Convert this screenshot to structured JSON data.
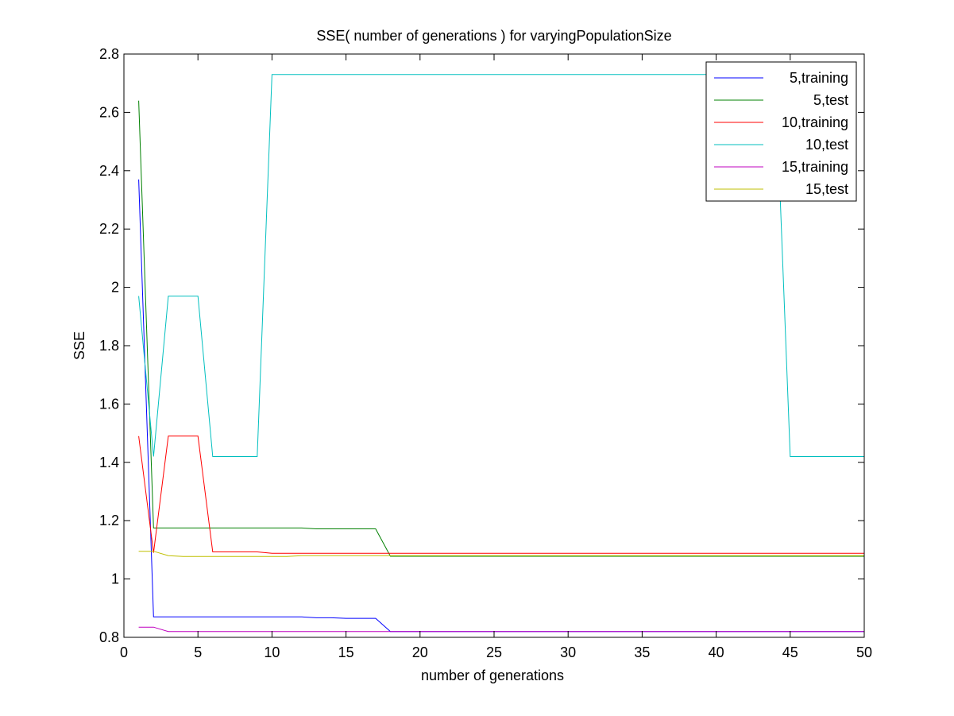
{
  "chart_data": {
    "type": "line",
    "title": "SSE( number of generations ) for varyingPopulationSize",
    "xlabel": "number of generations",
    "ylabel": "SSE",
    "xlim": [
      0,
      50
    ],
    "ylim": [
      0.8,
      2.8
    ],
    "xticks": [
      0,
      5,
      10,
      15,
      20,
      25,
      30,
      35,
      40,
      45,
      50
    ],
    "yticks": [
      0.8,
      1,
      1.2,
      1.4,
      1.6,
      1.8,
      2,
      2.2,
      2.4,
      2.6,
      2.8
    ],
    "xtick_labels": [
      "0",
      "5",
      "10",
      "15",
      "20",
      "25",
      "30",
      "35",
      "40",
      "45",
      "50"
    ],
    "ytick_labels": [
      "0.8",
      "1",
      "1.2",
      "1.4",
      "1.6",
      "1.8",
      "2",
      "2.2",
      "2.4",
      "2.6",
      "2.8"
    ],
    "grid": false,
    "legend_position": "top-right",
    "series": [
      {
        "name": "5,training",
        "color": "#0000ff",
        "x": [
          1,
          2,
          3,
          4,
          5,
          6,
          7,
          8,
          9,
          10,
          11,
          12,
          13,
          14,
          15,
          16,
          17,
          18,
          19,
          20,
          21,
          22,
          23,
          24,
          25,
          26,
          27,
          28,
          29,
          30,
          31,
          32,
          33,
          34,
          35,
          36,
          37,
          38,
          39,
          40,
          41,
          42,
          43,
          44,
          45,
          46,
          47,
          48,
          49,
          50
        ],
        "y": [
          2.37,
          0.87,
          0.87,
          0.87,
          0.87,
          0.87,
          0.87,
          0.87,
          0.87,
          0.87,
          0.87,
          0.87,
          0.867,
          0.867,
          0.865,
          0.865,
          0.865,
          0.82,
          0.82,
          0.82,
          0.82,
          0.82,
          0.82,
          0.82,
          0.82,
          0.82,
          0.82,
          0.82,
          0.82,
          0.82,
          0.82,
          0.82,
          0.82,
          0.82,
          0.82,
          0.82,
          0.82,
          0.82,
          0.82,
          0.82,
          0.82,
          0.82,
          0.82,
          0.82,
          0.82,
          0.82,
          0.82,
          0.82,
          0.82,
          0.82
        ]
      },
      {
        "name": "5,test",
        "color": "#008000",
        "x": [
          1,
          2,
          3,
          4,
          5,
          6,
          7,
          8,
          9,
          10,
          11,
          12,
          13,
          14,
          15,
          16,
          17,
          18,
          19,
          20,
          21,
          22,
          23,
          24,
          25,
          26,
          27,
          28,
          29,
          30,
          31,
          32,
          33,
          34,
          35,
          36,
          37,
          38,
          39,
          40,
          41,
          42,
          43,
          44,
          45,
          46,
          47,
          48,
          49,
          50
        ],
        "y": [
          2.64,
          1.175,
          1.175,
          1.175,
          1.175,
          1.175,
          1.175,
          1.175,
          1.175,
          1.175,
          1.175,
          1.175,
          1.172,
          1.172,
          1.172,
          1.172,
          1.172,
          1.078,
          1.078,
          1.078,
          1.078,
          1.078,
          1.078,
          1.078,
          1.078,
          1.078,
          1.078,
          1.078,
          1.078,
          1.078,
          1.078,
          1.078,
          1.078,
          1.078,
          1.078,
          1.078,
          1.078,
          1.078,
          1.078,
          1.078,
          1.078,
          1.078,
          1.078,
          1.078,
          1.078,
          1.078,
          1.078,
          1.078,
          1.078,
          1.078
        ]
      },
      {
        "name": "10,training",
        "color": "#ff0000",
        "x": [
          1,
          2,
          3,
          4,
          5,
          6,
          7,
          8,
          9,
          10,
          11,
          12,
          13,
          14,
          15,
          16,
          17,
          18,
          19,
          20,
          21,
          22,
          23,
          24,
          25,
          26,
          27,
          28,
          29,
          30,
          31,
          32,
          33,
          34,
          35,
          36,
          37,
          38,
          39,
          40,
          41,
          42,
          43,
          44,
          45,
          46,
          47,
          48,
          49,
          50
        ],
        "y": [
          1.49,
          1.09,
          1.49,
          1.49,
          1.49,
          1.093,
          1.093,
          1.093,
          1.093,
          1.088,
          1.088,
          1.088,
          1.088,
          1.088,
          1.088,
          1.088,
          1.088,
          1.088,
          1.088,
          1.088,
          1.088,
          1.088,
          1.088,
          1.088,
          1.088,
          1.088,
          1.088,
          1.088,
          1.088,
          1.088,
          1.088,
          1.088,
          1.088,
          1.088,
          1.088,
          1.088,
          1.088,
          1.088,
          1.088,
          1.088,
          1.088,
          1.088,
          1.088,
          1.088,
          1.088,
          1.088,
          1.088,
          1.088,
          1.088,
          1.088
        ]
      },
      {
        "name": "10,test",
        "color": "#00bfbf",
        "x": [
          1,
          2,
          3,
          4,
          5,
          6,
          7,
          8,
          9,
          10,
          11,
          12,
          13,
          14,
          15,
          16,
          17,
          18,
          19,
          20,
          21,
          22,
          23,
          24,
          25,
          26,
          27,
          28,
          29,
          30,
          31,
          32,
          33,
          34,
          35,
          36,
          37,
          38,
          39,
          40,
          41,
          42,
          43,
          44,
          45,
          46,
          47,
          48,
          49,
          50
        ],
        "y": [
          1.97,
          1.42,
          1.97,
          1.97,
          1.97,
          1.42,
          1.42,
          1.42,
          1.42,
          2.73,
          2.73,
          2.73,
          2.73,
          2.73,
          2.73,
          2.73,
          2.73,
          2.73,
          2.73,
          2.73,
          2.73,
          2.73,
          2.73,
          2.73,
          2.73,
          2.73,
          2.73,
          2.73,
          2.73,
          2.73,
          2.73,
          2.73,
          2.73,
          2.73,
          2.73,
          2.73,
          2.73,
          2.73,
          2.73,
          2.73,
          2.73,
          2.73,
          2.73,
          2.73,
          1.42,
          1.42,
          1.42,
          1.42,
          1.42,
          1.42
        ]
      },
      {
        "name": "15,training",
        "color": "#bf00bf",
        "x": [
          1,
          2,
          3,
          4,
          5,
          6,
          7,
          8,
          9,
          10,
          11,
          12,
          13,
          14,
          15,
          16,
          17,
          18,
          19,
          20,
          21,
          22,
          23,
          24,
          25,
          26,
          27,
          28,
          29,
          30,
          31,
          32,
          33,
          34,
          35,
          36,
          37,
          38,
          39,
          40,
          41,
          42,
          43,
          44,
          45,
          46,
          47,
          48,
          49,
          50
        ],
        "y": [
          0.835,
          0.835,
          0.82,
          0.82,
          0.82,
          0.82,
          0.82,
          0.82,
          0.82,
          0.82,
          0.82,
          0.82,
          0.82,
          0.82,
          0.82,
          0.82,
          0.82,
          0.82,
          0.82,
          0.82,
          0.82,
          0.82,
          0.82,
          0.82,
          0.82,
          0.82,
          0.82,
          0.82,
          0.82,
          0.82,
          0.82,
          0.82,
          0.82,
          0.82,
          0.82,
          0.82,
          0.82,
          0.82,
          0.82,
          0.82,
          0.82,
          0.82,
          0.82,
          0.82,
          0.82,
          0.82,
          0.82,
          0.82,
          0.82,
          0.82
        ]
      },
      {
        "name": "15,test",
        "color": "#bfbf00",
        "x": [
          1,
          2,
          3,
          4,
          5,
          6,
          7,
          8,
          9,
          10,
          11,
          12,
          13,
          14,
          15,
          16,
          17,
          18,
          19,
          20,
          21,
          22,
          23,
          24,
          25,
          26,
          27,
          28,
          29,
          30,
          31,
          32,
          33,
          34,
          35,
          36,
          37,
          38,
          39,
          40,
          41,
          42,
          43,
          44,
          45,
          46,
          47,
          48,
          49,
          50
        ],
        "y": [
          1.095,
          1.095,
          1.08,
          1.077,
          1.077,
          1.077,
          1.077,
          1.077,
          1.077,
          1.077,
          1.077,
          1.08,
          1.08,
          1.08,
          1.08,
          1.08,
          1.08,
          1.08,
          1.08,
          1.08,
          1.08,
          1.08,
          1.08,
          1.08,
          1.08,
          1.08,
          1.08,
          1.08,
          1.08,
          1.08,
          1.08,
          1.08,
          1.08,
          1.08,
          1.08,
          1.08,
          1.08,
          1.08,
          1.08,
          1.08,
          1.08,
          1.08,
          1.08,
          1.08,
          1.08,
          1.08,
          1.08,
          1.08,
          1.08,
          1.08
        ]
      }
    ]
  }
}
